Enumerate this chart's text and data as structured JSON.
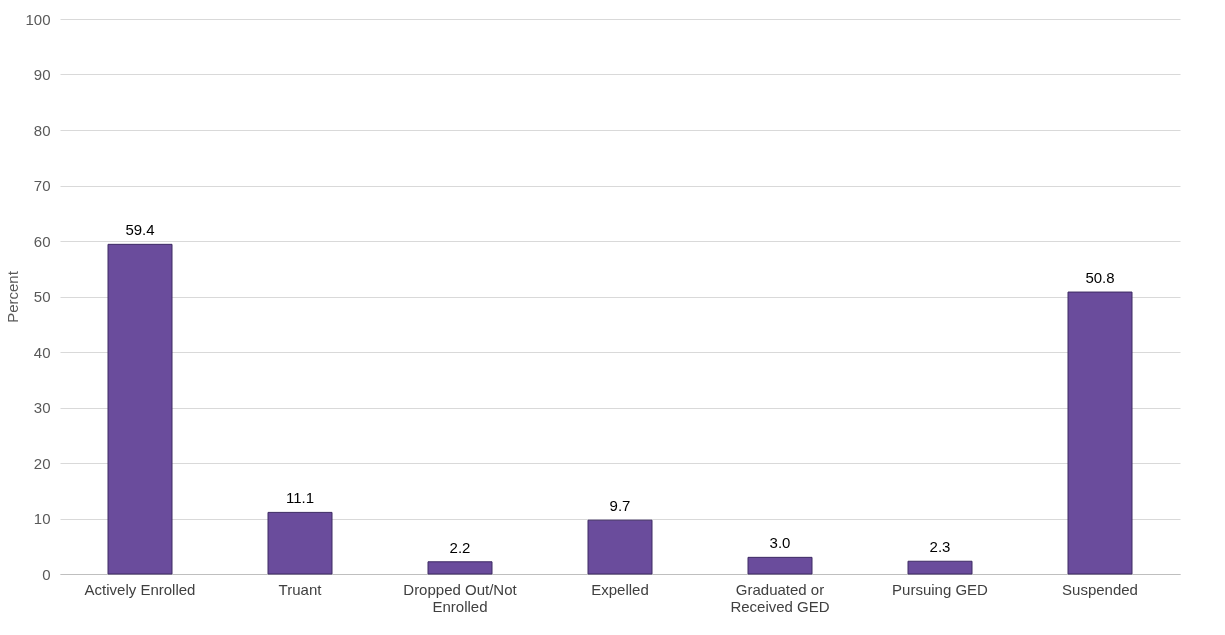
{
  "chart_data": {
    "type": "bar",
    "ylabel": "Percent",
    "categories": [
      "Actively Enrolled",
      "Truant",
      "Dropped Out/Not Enrolled",
      "Expelled",
      "Graduated or Received GED",
      "Pursuing GED",
      "Suspended"
    ],
    "values": [
      59.4,
      11.1,
      2.2,
      9.7,
      3.0,
      2.3,
      50.8
    ],
    "value_labels": [
      "59.4",
      "11.1",
      "2.2",
      "9.7",
      "3.0",
      "2.3",
      "50.8"
    ],
    "color": "#6a4c9c",
    "ylim": [
      0,
      100
    ],
    "yticks": [
      0,
      10,
      20,
      30,
      40,
      50,
      60,
      70,
      80,
      90,
      100
    ],
    "grid": "y"
  }
}
